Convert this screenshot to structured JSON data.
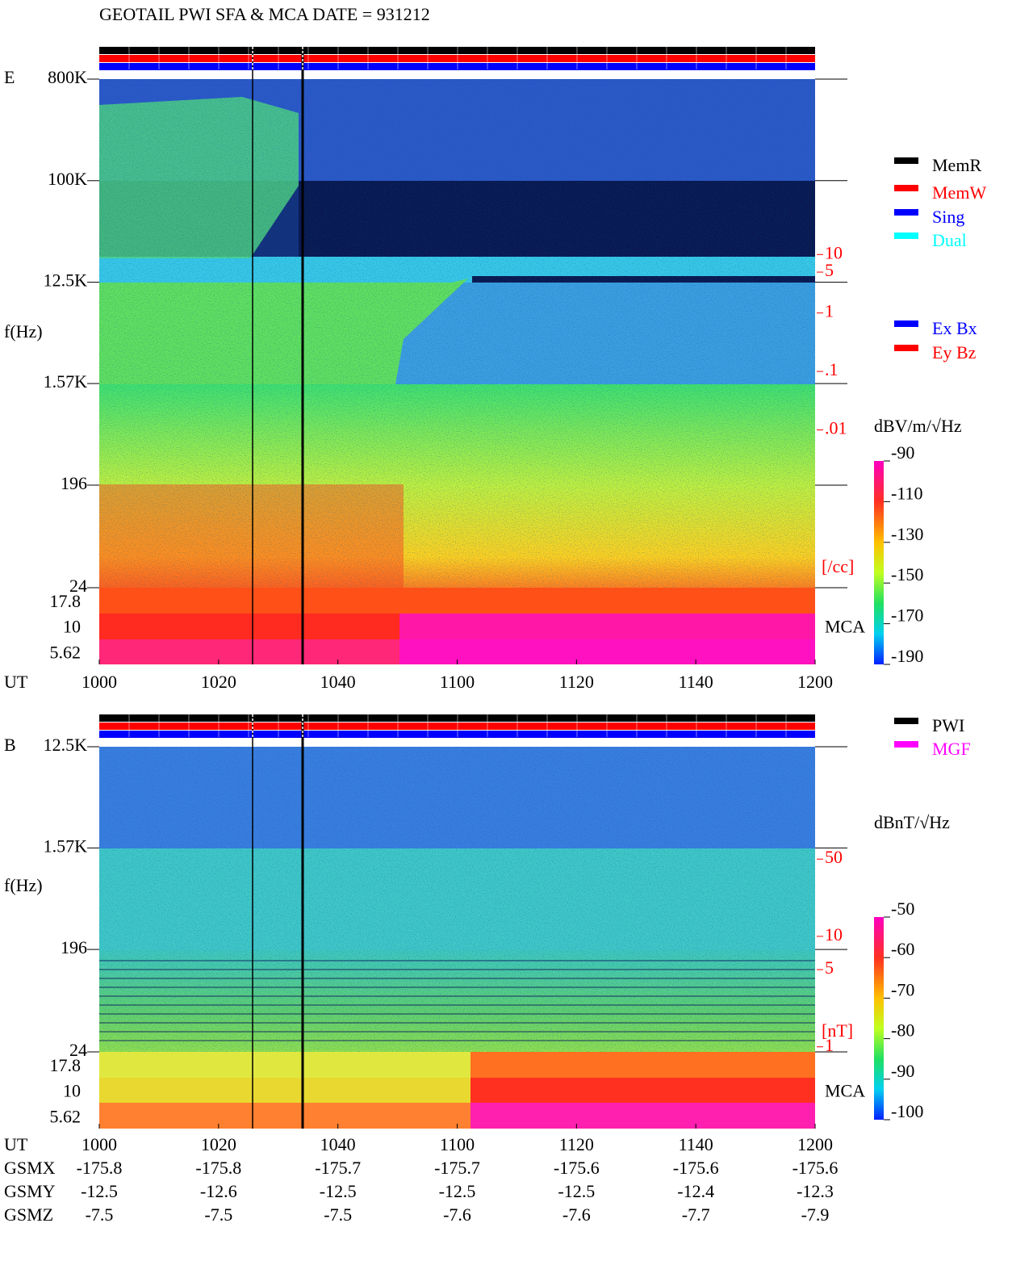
{
  "title": "GEOTAIL  PWI SFA & MCA   DATE = 931212",
  "chart_data": [
    {
      "type": "spectrogram",
      "panel": "E",
      "ylabel": "f(Hz)",
      "yscale": "log",
      "ylim": [
        24,
        800000
      ],
      "yticks": [
        {
          "value": 800000,
          "label": "800K"
        },
        {
          "value": 100000,
          "label": "100K"
        },
        {
          "value": 12500,
          "label": "12.5K"
        },
        {
          "value": 1570,
          "label": "1.57K"
        },
        196,
        24
      ],
      "mca_label": "MCA",
      "mca_channels": [
        17.8,
        10,
        5.62
      ],
      "y2scale": "log",
      "y2lim": [
        2e-05,
        10000
      ],
      "y2color": "#ff0000",
      "y2ticks": [
        10,
        5,
        1,
        {
          "value": 0.1,
          "label": ".1"
        },
        {
          "value": 0.01,
          "label": ".01"
        }
      ],
      "y2label": "[/cc]",
      "xlabel": "UT",
      "xticks": [
        "1000",
        "1020",
        "1040",
        "1100",
        "1120",
        "1140",
        "1200"
      ],
      "colorbar": {
        "label": "dBV/m/√Hz",
        "clim": [
          -190,
          -90
        ],
        "ticks": [
          -90,
          -110,
          -130,
          -150,
          -170,
          -190
        ]
      },
      "legend": [
        {
          "name": "MemR",
          "color": "#000000"
        },
        {
          "name": "MemW",
          "color": "#ff0000"
        },
        {
          "name": "Sing",
          "color": "#0000ff"
        },
        {
          "name": "Dual",
          "color": "#00ffff"
        }
      ],
      "legend2": [
        {
          "name": "Ex Bx",
          "color": "#0000ff"
        },
        {
          "name": "Ey Bz",
          "color": "#ff0000"
        }
      ]
    },
    {
      "type": "spectrogram",
      "panel": "B",
      "ylabel": "f(Hz)",
      "yscale": "log",
      "ylim": [
        24,
        12500
      ],
      "yticks": [
        {
          "value": 12500,
          "label": "12.5K"
        },
        {
          "value": 1570,
          "label": "1.57K"
        },
        196,
        24
      ],
      "mca_label": "MCA",
      "mca_channels": [
        17.8,
        10,
        5.62
      ],
      "y2scale": "log",
      "y2lim": [
        0.9,
        520
      ],
      "y2color": "#ff0000",
      "y2ticks": [
        50,
        10,
        5,
        1
      ],
      "y2label": "[nT]",
      "xlabel": "UT",
      "xticks": [
        "1000",
        "1020",
        "1040",
        "1100",
        "1120",
        "1140",
        "1200"
      ],
      "colorbar": {
        "label": "dBnT/√Hz",
        "clim": [
          -100,
          -50
        ],
        "ticks": [
          -50,
          -60,
          -70,
          -80,
          -90,
          -100
        ]
      },
      "legend": [
        {
          "name": "PWI",
          "color": "#000000"
        },
        {
          "name": "MGF",
          "color": "#ff00ff"
        }
      ]
    }
  ],
  "orbit": [
    {
      "name": "GSMX",
      "values": [
        -175.8,
        -175.8,
        -175.7,
        -175.7,
        -175.6,
        -175.6,
        -175.6
      ]
    },
    {
      "name": "GSMY",
      "values": [
        -12.5,
        -12.6,
        -12.5,
        -12.5,
        -12.5,
        -12.4,
        -12.3
      ]
    },
    {
      "name": "GSMZ",
      "values": [
        -7.5,
        -7.5,
        -7.5,
        -7.6,
        -7.6,
        -7.7,
        -7.9
      ]
    }
  ]
}
